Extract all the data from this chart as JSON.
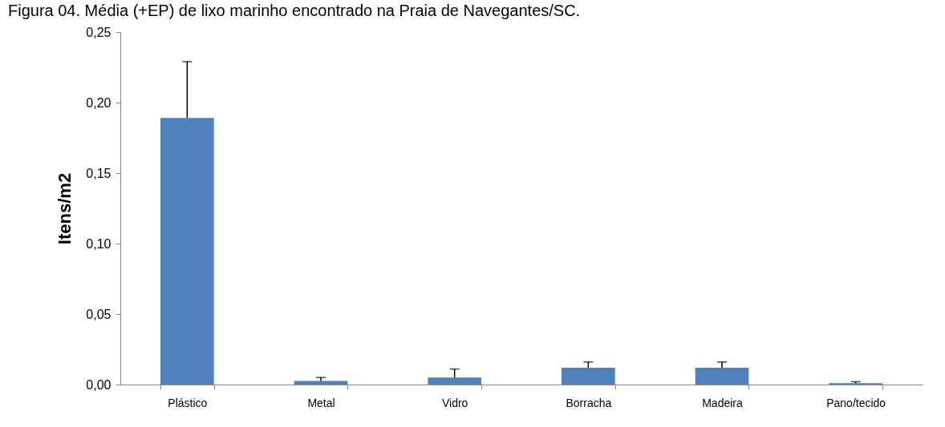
{
  "chart_data": {
    "type": "bar",
    "title": "Figura 04. Média (+EP) de lixo marinho encontrado na Praia de Navegantes/SC.",
    "ylabel": "Itens/m2",
    "categories": [
      "Plástico",
      "Metal",
      "Vidro",
      "Borracha",
      "Madeira",
      "Pano/tecido"
    ],
    "values": [
      0.189,
      0.0025,
      0.005,
      0.012,
      0.012,
      0.001
    ],
    "errors": [
      [
        0.189,
        0.229
      ],
      [
        0.0025,
        0.005
      ],
      [
        0.005,
        0.011
      ],
      [
        0.012,
        0.016
      ],
      [
        0.012,
        0.016
      ],
      [
        0.001,
        0.002
      ]
    ],
    "color": "#4f81bd",
    "ylim": [
      0,
      0.25
    ],
    "yticks": [
      {
        "value": 0,
        "label": "0,00"
      },
      {
        "value": 0.05,
        "label": "0,05"
      },
      {
        "value": 0.1,
        "label": "0,10"
      },
      {
        "value": 0.15,
        "label": "0,15"
      },
      {
        "value": 0.2,
        "label": "0,20"
      },
      {
        "value": 0.25,
        "label": "0,25"
      }
    ],
    "grid": false
  }
}
